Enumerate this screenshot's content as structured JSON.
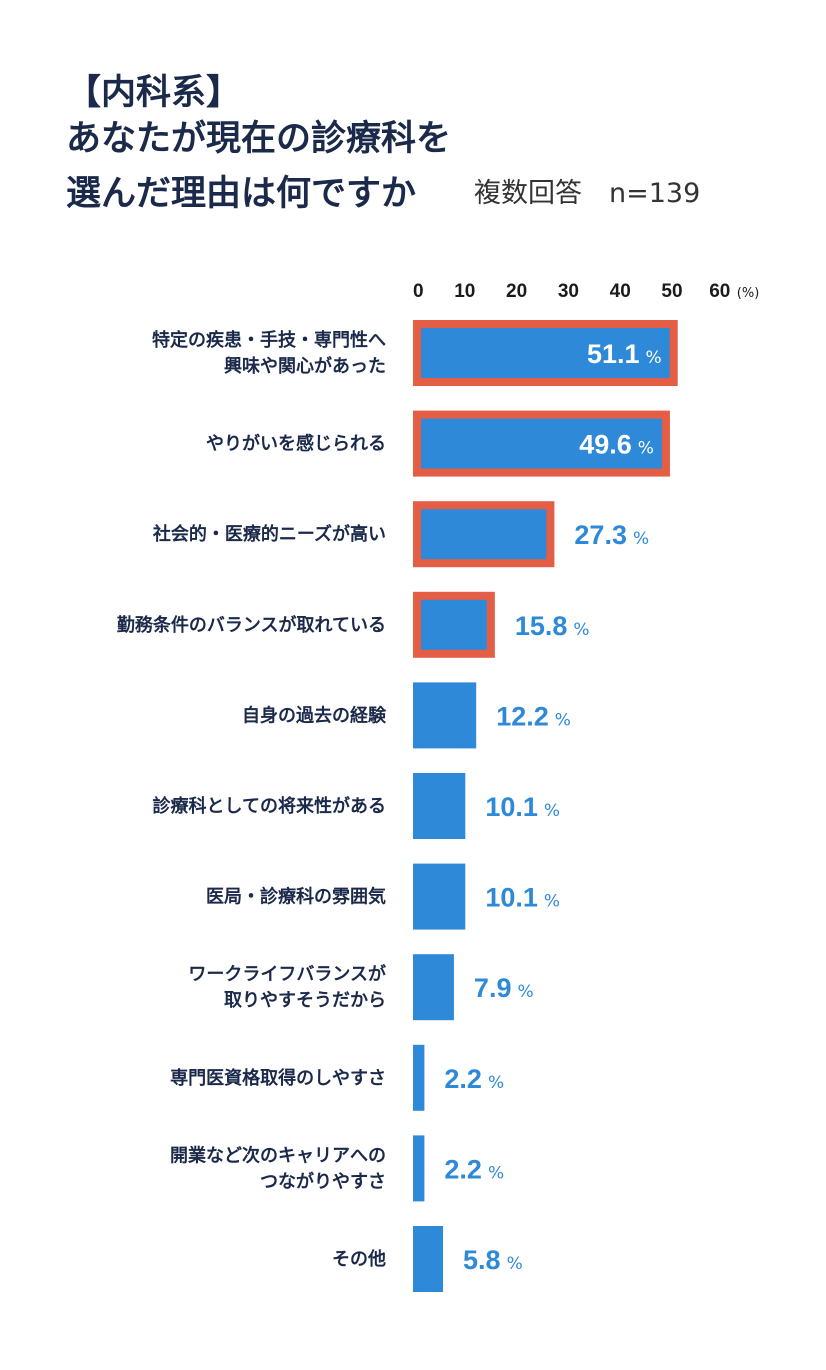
{
  "header": {
    "title_line1": "【内科系】",
    "title_line2": "あなたが現在の診療科を",
    "title_line3": "選んだ理由は何ですか",
    "subtitle": "複数回答　n=139"
  },
  "colors": {
    "bar": "#2e8ad8",
    "highlight_frame": "#e45d45",
    "value_on_bar": "#ffffff",
    "value_outside": "#2e8ad8",
    "title": "#1b2a4a"
  },
  "chart_data": {
    "type": "bar",
    "orientation": "horizontal",
    "categories": [
      [
        "特定の疾患・手技・専門性へ",
        "興味や関心があった"
      ],
      [
        "やりがいを感じられる"
      ],
      [
        "社会的・医療的ニーズが高い"
      ],
      [
        "勤務条件のバランスが取れている"
      ],
      [
        "自身の過去の経験"
      ],
      [
        "診療科としての将来性がある"
      ],
      [
        "医局・診療科の雰囲気"
      ],
      [
        "ワークライフバランスが",
        "取りやすそうだから"
      ],
      [
        "専門医資格取得のしやすさ"
      ],
      [
        "開業など次のキャリアへの",
        "つながりやすさ"
      ],
      [
        "その他"
      ]
    ],
    "values": [
      51.1,
      49.6,
      27.3,
      15.8,
      12.2,
      10.1,
      10.1,
      7.9,
      2.2,
      2.2,
      5.8
    ],
    "value_labels": [
      "51.1",
      "49.6",
      "27.3",
      "15.8",
      "12.2",
      "10.1",
      "10.1",
      "7.9",
      "2.2",
      "2.2",
      "5.8"
    ],
    "value_suffix": "%",
    "highlighted": [
      true,
      true,
      true,
      true,
      false,
      false,
      false,
      false,
      false,
      false,
      false
    ],
    "x_ticks": [
      "0",
      "10",
      "20",
      "30",
      "40",
      "50",
      "60"
    ],
    "x_unit": "(%)",
    "xlim": [
      0,
      60
    ],
    "axis_position": "top",
    "grid": false,
    "legend": "none"
  }
}
